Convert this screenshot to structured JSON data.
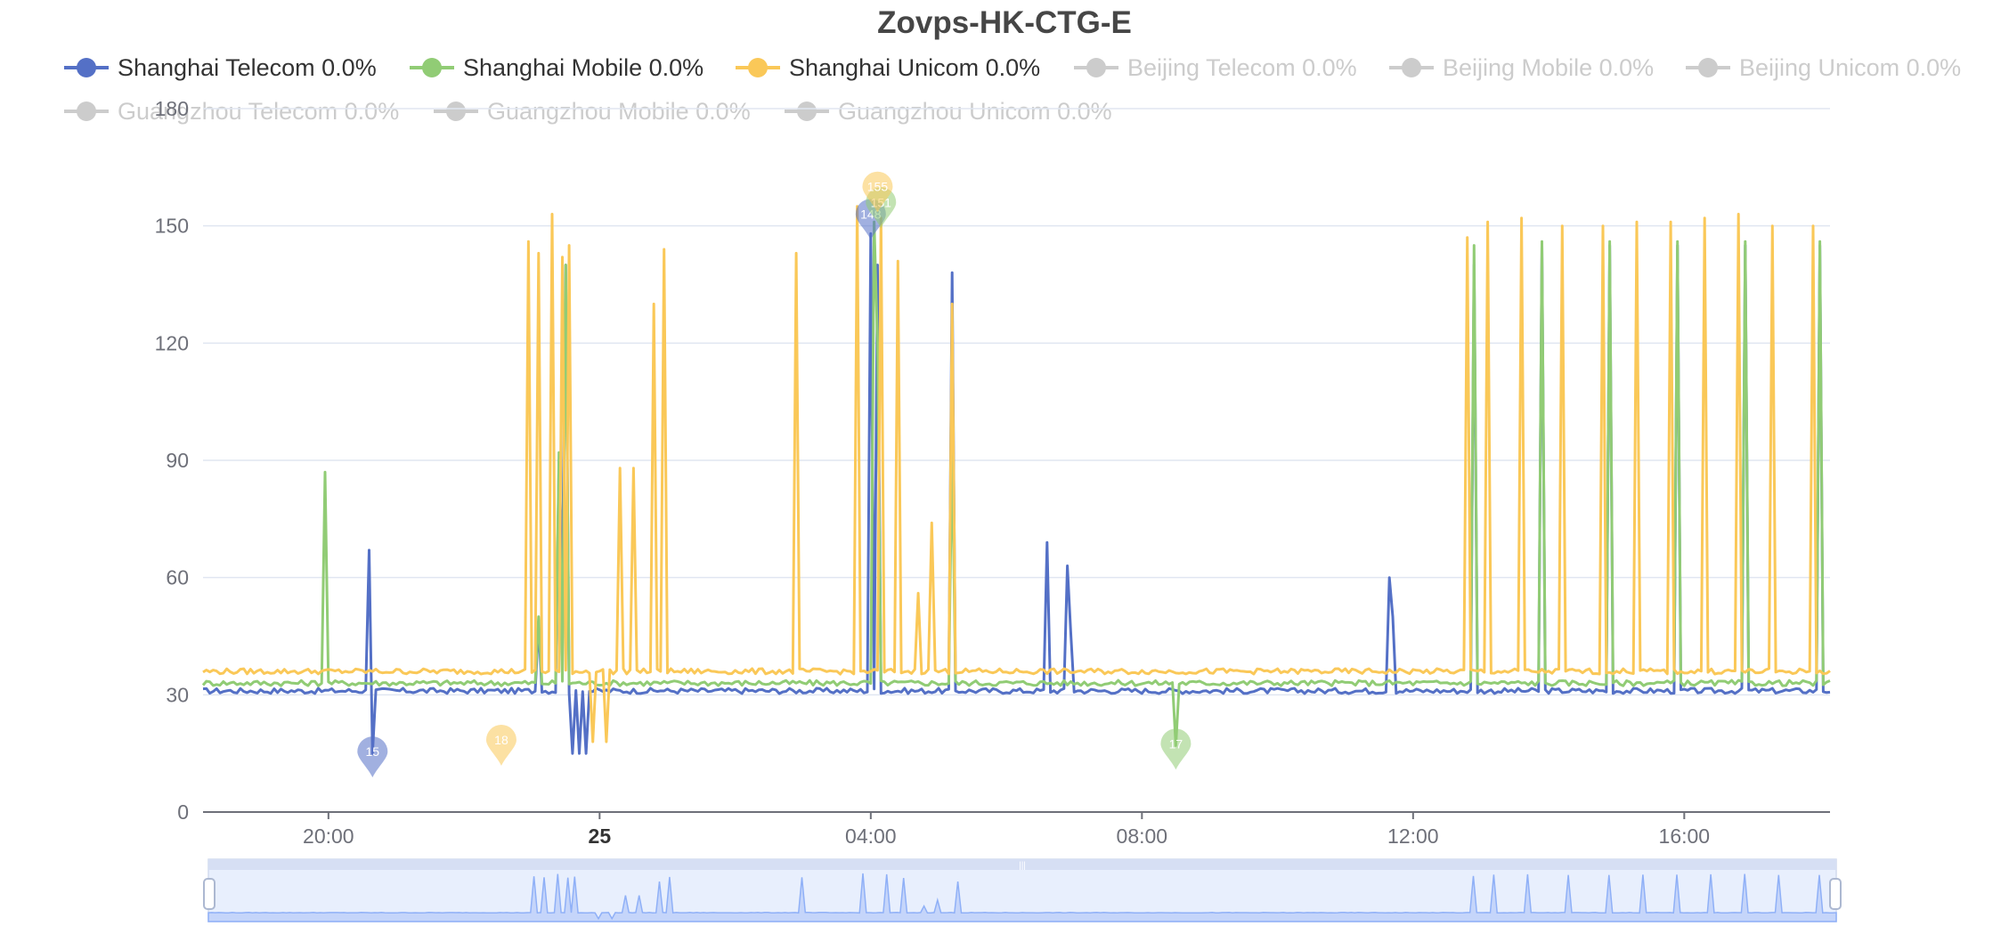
{
  "chart_data": {
    "type": "line",
    "title": "Zovps-HK-CTG-E",
    "xlabel": "",
    "ylabel": "",
    "ylim": [
      0,
      180
    ],
    "y_ticks": [
      0,
      30,
      60,
      90,
      120,
      150,
      180
    ],
    "x_range_hours": [
      17.75,
      41.75
    ],
    "x_tick_labels": [
      {
        "label": "20:00",
        "hour": 19.6,
        "bold": false
      },
      {
        "label": "25",
        "hour": 23.6,
        "bold": true
      },
      {
        "label": "04:00",
        "hour": 27.6,
        "bold": false
      },
      {
        "label": "08:00",
        "hour": 31.6,
        "bold": false
      },
      {
        "label": "12:00",
        "hour": 35.6,
        "bold": false
      },
      {
        "label": "16:00",
        "hour": 39.6,
        "bold": false
      }
    ],
    "grid": true,
    "legend_position": "top",
    "series": [
      {
        "name": "Shanghai Telecom 0.0%",
        "color": "#5470c6",
        "visible": true,
        "baseline": 31,
        "events": [
          [
            20.2,
            67
          ],
          [
            20.25,
            15
          ],
          [
            22.7,
            48
          ],
          [
            23.0,
            90
          ],
          [
            23.05,
            60
          ],
          [
            23.1,
            140
          ],
          [
            23.2,
            15
          ],
          [
            23.3,
            15
          ],
          [
            23.4,
            15
          ],
          [
            24.5,
            31
          ],
          [
            27.6,
            148
          ],
          [
            27.7,
            140
          ],
          [
            28.8,
            138
          ],
          [
            30.2,
            69
          ],
          [
            30.5,
            63
          ],
          [
            30.55,
            46
          ],
          [
            35.25,
            60
          ],
          [
            35.3,
            50
          ],
          [
            36.5,
            140
          ],
          [
            37.5,
            145
          ],
          [
            38.5,
            145
          ],
          [
            39.5,
            145
          ],
          [
            40.5,
            145
          ],
          [
            41.6,
            145
          ]
        ]
      },
      {
        "name": "Shanghai Mobile 0.0%",
        "color": "#91cc75",
        "visible": true,
        "baseline": 33,
        "events": [
          [
            19.55,
            87
          ],
          [
            22.7,
            50
          ],
          [
            23.0,
            92
          ],
          [
            23.1,
            140
          ],
          [
            27.65,
            151
          ],
          [
            27.7,
            120
          ],
          [
            28.8,
            94
          ],
          [
            32.1,
            17
          ],
          [
            36.5,
            145
          ],
          [
            37.5,
            146
          ],
          [
            38.5,
            146
          ],
          [
            39.5,
            146
          ],
          [
            40.5,
            146
          ],
          [
            41.6,
            146
          ]
        ]
      },
      {
        "name": "Shanghai Unicom 0.0%",
        "color": "#fac858",
        "visible": true,
        "baseline": 36,
        "events": [
          [
            22.55,
            146
          ],
          [
            22.7,
            143
          ],
          [
            22.9,
            153
          ],
          [
            23.05,
            142
          ],
          [
            23.15,
            145
          ],
          [
            23.5,
            18
          ],
          [
            23.7,
            18
          ],
          [
            23.9,
            88
          ],
          [
            24.1,
            88
          ],
          [
            24.4,
            130
          ],
          [
            24.55,
            144
          ],
          [
            26.5,
            143
          ],
          [
            27.4,
            155
          ],
          [
            27.75,
            152
          ],
          [
            28.0,
            141
          ],
          [
            28.3,
            56
          ],
          [
            28.5,
            74
          ],
          [
            28.8,
            130
          ],
          [
            36.4,
            147
          ],
          [
            36.7,
            151
          ],
          [
            37.2,
            152
          ],
          [
            37.8,
            150
          ],
          [
            38.4,
            150
          ],
          [
            38.9,
            151
          ],
          [
            39.4,
            151
          ],
          [
            39.9,
            152
          ],
          [
            40.4,
            153
          ],
          [
            40.9,
            150
          ],
          [
            41.5,
            150
          ]
        ]
      },
      {
        "name": "Beijing Telecom 0.0%",
        "color": "#cccccc",
        "visible": false
      },
      {
        "name": "Beijing Mobile 0.0%",
        "color": "#cccccc",
        "visible": false
      },
      {
        "name": "Beijing Unicom 0.0%",
        "color": "#cccccc",
        "visible": false
      },
      {
        "name": "Guangzhou Telecom 0.0%",
        "color": "#cccccc",
        "visible": false
      },
      {
        "name": "Guangzhou Mobile 0.0%",
        "color": "#cccccc",
        "visible": false
      },
      {
        "name": "Guangzhou Unicom 0.0%",
        "color": "#cccccc",
        "visible": false
      }
    ],
    "markers": [
      {
        "series": "Shanghai Telecom 0.0%",
        "hour": 20.25,
        "value": 15,
        "label": "15",
        "type": "min"
      },
      {
        "series": "Shanghai Unicom 0.0%",
        "hour": 22.15,
        "value": 18,
        "label": "18",
        "type": "min"
      },
      {
        "series": "Shanghai Mobile 0.0%",
        "hour": 32.1,
        "value": 17,
        "label": "17",
        "type": "min"
      },
      {
        "series": "Shanghai Telecom 0.0%",
        "hour": 27.6,
        "value": 148,
        "label": "148",
        "type": "max"
      },
      {
        "series": "Shanghai Mobile 0.0%",
        "hour": 27.75,
        "value": 151,
        "label": "151",
        "type": "max"
      },
      {
        "series": "Shanghai Unicom 0.0%",
        "hour": 27.7,
        "value": 155,
        "label": "155",
        "type": "max"
      }
    ]
  },
  "data_zoom": {
    "start_percent": 0,
    "end_percent": 100,
    "handle_glyph": "|||"
  }
}
